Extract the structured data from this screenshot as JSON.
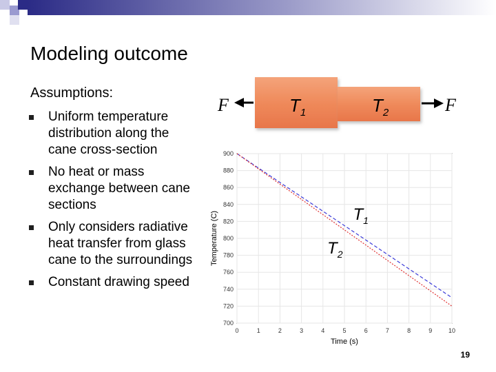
{
  "slide": {
    "title": "Modeling outcome",
    "assumptions_heading": "Assumptions:",
    "bullets": [
      "Uniform temperature distribution along the cane cross-section",
      "No heat or mass exchange between cane sections",
      "Only considers radiative heat transfer from glass cane to the surroundings",
      "Constant drawing speed"
    ],
    "page_number": "19"
  },
  "diagram": {
    "force_left": "F",
    "force_right": "F",
    "t1_letter": "T",
    "t1_sub": "1",
    "t2_letter": "T",
    "t2_sub": "2",
    "cane_color": "#ef8a5b"
  },
  "colors": {
    "header_dark": "#2b2b86",
    "t1_line": "#3a3ad8",
    "t2_line": "#e03030"
  },
  "chart_data": {
    "type": "line",
    "title": "",
    "xlabel": "Time (s)",
    "ylabel": "Temperature (C)",
    "xlim": [
      0,
      10
    ],
    "ylim": [
      700,
      900
    ],
    "x_ticks": [
      0,
      1,
      2,
      3,
      4,
      5,
      6,
      7,
      8,
      9,
      10
    ],
    "y_ticks": [
      700,
      720,
      740,
      760,
      780,
      800,
      820,
      840,
      860,
      880,
      900
    ],
    "series": [
      {
        "name": "T1",
        "x": [
          0,
          10
        ],
        "y": [
          900,
          730
        ]
      },
      {
        "name": "T2",
        "x": [
          0,
          10
        ],
        "y": [
          900,
          720
        ]
      }
    ],
    "annotations": [
      {
        "letter": "T",
        "sub": "1",
        "x": 5.4,
        "y": 822
      },
      {
        "letter": "T",
        "sub": "2",
        "x": 4.2,
        "y": 782
      }
    ]
  }
}
